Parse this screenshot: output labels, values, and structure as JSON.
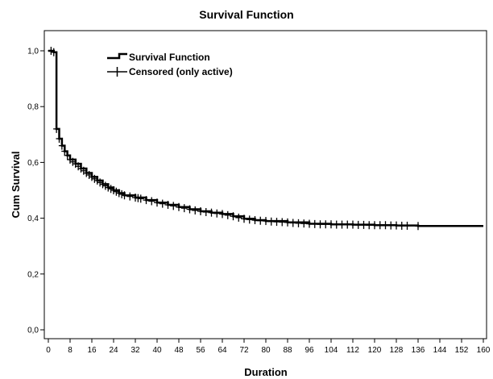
{
  "chart_data": {
    "type": "line",
    "title": "Survival Function",
    "xlabel": "Duration",
    "ylabel": "Cum Survival",
    "xlim": [
      0,
      160
    ],
    "ylim": [
      0,
      1.0
    ],
    "x_ticks": [
      "0",
      "8",
      "16",
      "24",
      "32",
      "40",
      "48",
      "56",
      "64",
      "72",
      "80",
      "88",
      "96",
      "104",
      "112",
      "120",
      "128",
      "136",
      "144",
      "152",
      "160"
    ],
    "y_ticks": [
      "0,0",
      "0,2",
      "0,4",
      "0,6",
      "0,8",
      "1,0"
    ],
    "legend": {
      "position": "top-left",
      "entries": [
        "Survival Function",
        "Censored (only active)"
      ]
    },
    "series": [
      {
        "name": "Survival Function",
        "x": [
          0,
          2,
          3,
          4,
          5,
          6,
          7,
          8,
          10,
          12,
          14,
          16,
          18,
          20,
          22,
          24,
          26,
          28,
          32,
          36,
          40,
          44,
          48,
          52,
          56,
          60,
          64,
          68,
          72,
          76,
          80,
          88,
          96,
          104,
          112,
          120,
          128,
          136,
          144,
          152,
          160
        ],
        "y": [
          1.0,
          0.995,
          0.72,
          0.685,
          0.66,
          0.64,
          0.625,
          0.61,
          0.595,
          0.578,
          0.562,
          0.548,
          0.535,
          0.522,
          0.51,
          0.5,
          0.49,
          0.482,
          0.474,
          0.465,
          0.456,
          0.448,
          0.44,
          0.432,
          0.425,
          0.42,
          0.415,
          0.407,
          0.398,
          0.393,
          0.39,
          0.385,
          0.38,
          0.378,
          0.377,
          0.375,
          0.374,
          0.372,
          0.372,
          0.372,
          0.372
        ]
      },
      {
        "name": "Censored (only active)",
        "x": [
          1,
          2,
          3,
          4,
          5,
          6,
          7,
          8,
          9,
          10,
          11,
          12,
          13,
          14,
          15,
          16,
          17,
          18,
          19,
          20,
          21,
          22,
          23,
          24,
          25,
          26,
          27,
          28,
          30,
          32,
          33,
          34,
          36,
          38,
          40,
          42,
          44,
          46,
          48,
          50,
          52,
          54,
          56,
          58,
          60,
          62,
          64,
          66,
          68,
          70,
          72,
          74,
          76,
          78,
          80,
          82,
          84,
          86,
          88,
          90,
          92,
          94,
          96,
          98,
          100,
          102,
          104,
          106,
          108,
          110,
          112,
          114,
          116,
          118,
          120,
          122,
          124,
          126,
          128,
          130,
          132,
          136
        ],
        "y": [
          1.0,
          0.995,
          0.72,
          0.685,
          0.66,
          0.64,
          0.625,
          0.61,
          0.602,
          0.595,
          0.586,
          0.578,
          0.57,
          0.562,
          0.555,
          0.548,
          0.541,
          0.535,
          0.528,
          0.522,
          0.516,
          0.51,
          0.505,
          0.5,
          0.495,
          0.49,
          0.486,
          0.482,
          0.478,
          0.474,
          0.472,
          0.47,
          0.465,
          0.461,
          0.456,
          0.452,
          0.448,
          0.444,
          0.44,
          0.436,
          0.432,
          0.428,
          0.425,
          0.422,
          0.42,
          0.417,
          0.415,
          0.411,
          0.407,
          0.402,
          0.398,
          0.395,
          0.393,
          0.391,
          0.39,
          0.388,
          0.387,
          0.386,
          0.385,
          0.383,
          0.382,
          0.381,
          0.38,
          0.379,
          0.378,
          0.378,
          0.378,
          0.377,
          0.377,
          0.377,
          0.377,
          0.376,
          0.376,
          0.375,
          0.375,
          0.375,
          0.375,
          0.374,
          0.374,
          0.373,
          0.373,
          0.372
        ]
      }
    ]
  }
}
